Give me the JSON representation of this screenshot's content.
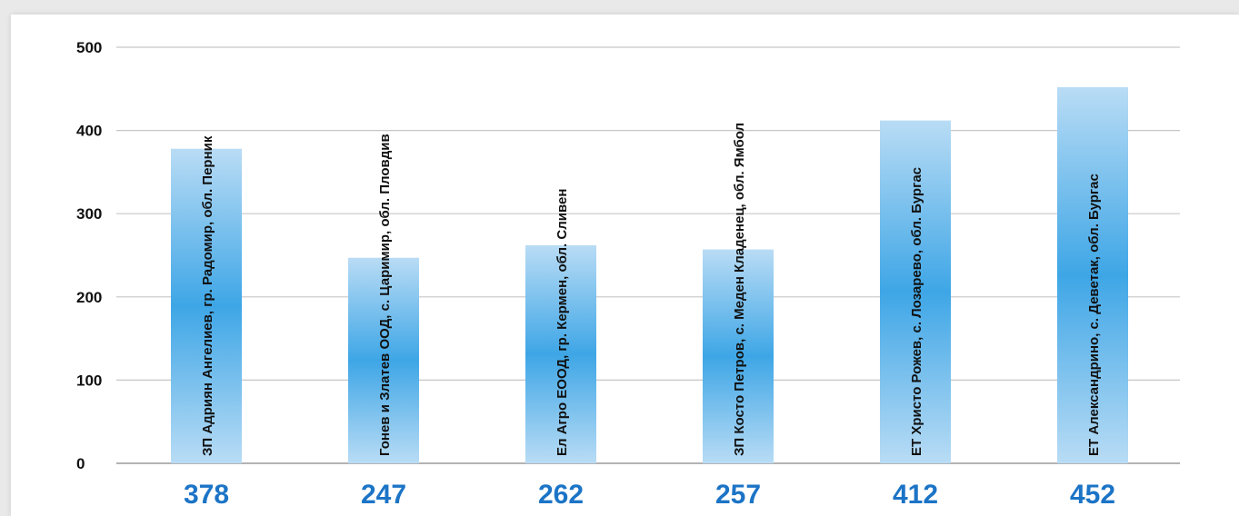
{
  "colors": {
    "bar_edge": "#b9dcf5",
    "bar_center": "#3ea6e6",
    "grid": "#c6c6c6",
    "axis": "#9a9a9a",
    "value_text": "#1c74c6"
  },
  "chart_data": {
    "type": "bar",
    "ylim": [
      0,
      500
    ],
    "yticks": [
      0,
      100,
      200,
      300,
      400,
      500
    ],
    "grid": true,
    "categories": [
      "ЗП Адриян Ангелиев, гр. Радомир, обл. Перник",
      "Гонев и Златев ООД, с. Царимир, обл. Пловдив",
      "Ел Агро ЕООД, гр. Кермен, обл. Сливен",
      "ЗП Косто Петров, с. Меден Кладенец, обл. Ямбол",
      "ЕТ Христо Рожев, с. Лозарево, обл. Бургас",
      "ЕТ Александрино, с. Деветак, обл. Бургас"
    ],
    "values": [
      378,
      247,
      262,
      257,
      412,
      452
    ],
    "value_labels": [
      "378",
      "247",
      "262",
      "257",
      "412",
      "452"
    ]
  }
}
